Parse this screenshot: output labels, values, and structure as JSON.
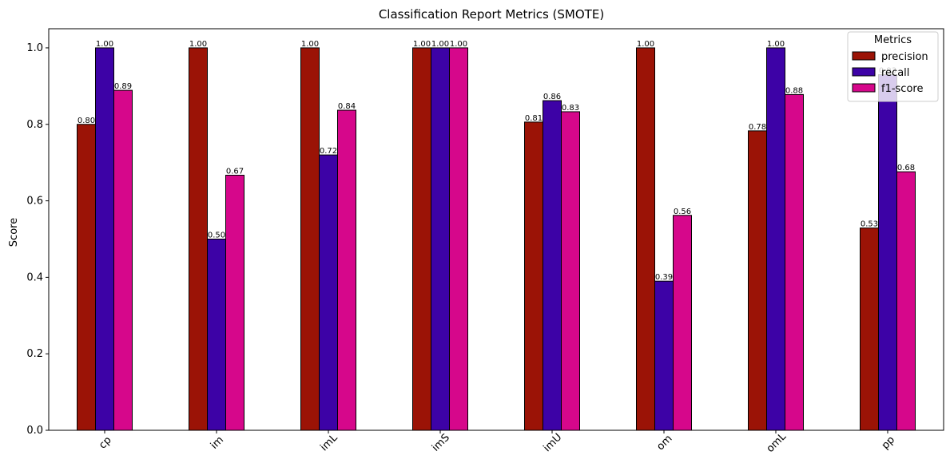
{
  "chart_data": {
    "type": "bar",
    "title": "Classification Report Metrics (SMOTE)",
    "xlabel": "",
    "ylabel": "Score",
    "ylim": [
      0,
      1.05
    ],
    "yticks": [
      "0.0",
      "0.2",
      "0.4",
      "0.6",
      "0.8",
      "1.0"
    ],
    "categories": [
      "cp",
      "im",
      "imL",
      "imS",
      "imU",
      "om",
      "omL",
      "pp"
    ],
    "series": [
      {
        "name": "precision",
        "color": "#9b1306",
        "values": [
          0.8,
          1.0,
          1.0,
          1.0,
          0.806,
          1.0,
          0.783,
          0.529
        ],
        "labels": [
          "0.80",
          "1.00",
          "1.00",
          "1.00",
          "0.81",
          "1.00",
          "0.78",
          "0.53"
        ]
      },
      {
        "name": "recall",
        "color": "#3d02a6",
        "values": [
          1.0,
          0.5,
          0.72,
          1.0,
          0.862,
          0.39,
          1.0,
          0.93
        ],
        "labels": [
          "1.00",
          "0.50",
          "0.72",
          "1.00",
          "0.86",
          "0.39",
          "1.00",
          "0.93"
        ]
      },
      {
        "name": "f1-score",
        "color": "#d6078b",
        "values": [
          0.889,
          0.667,
          0.837,
          1.0,
          0.833,
          0.562,
          0.878,
          0.676
        ],
        "labels": [
          "0.89",
          "0.67",
          "0.84",
          "1.00",
          "0.83",
          "0.56",
          "0.88",
          "0.68"
        ]
      }
    ],
    "legend": {
      "title": "Metrics",
      "position": "top-right"
    },
    "grid": false
  }
}
